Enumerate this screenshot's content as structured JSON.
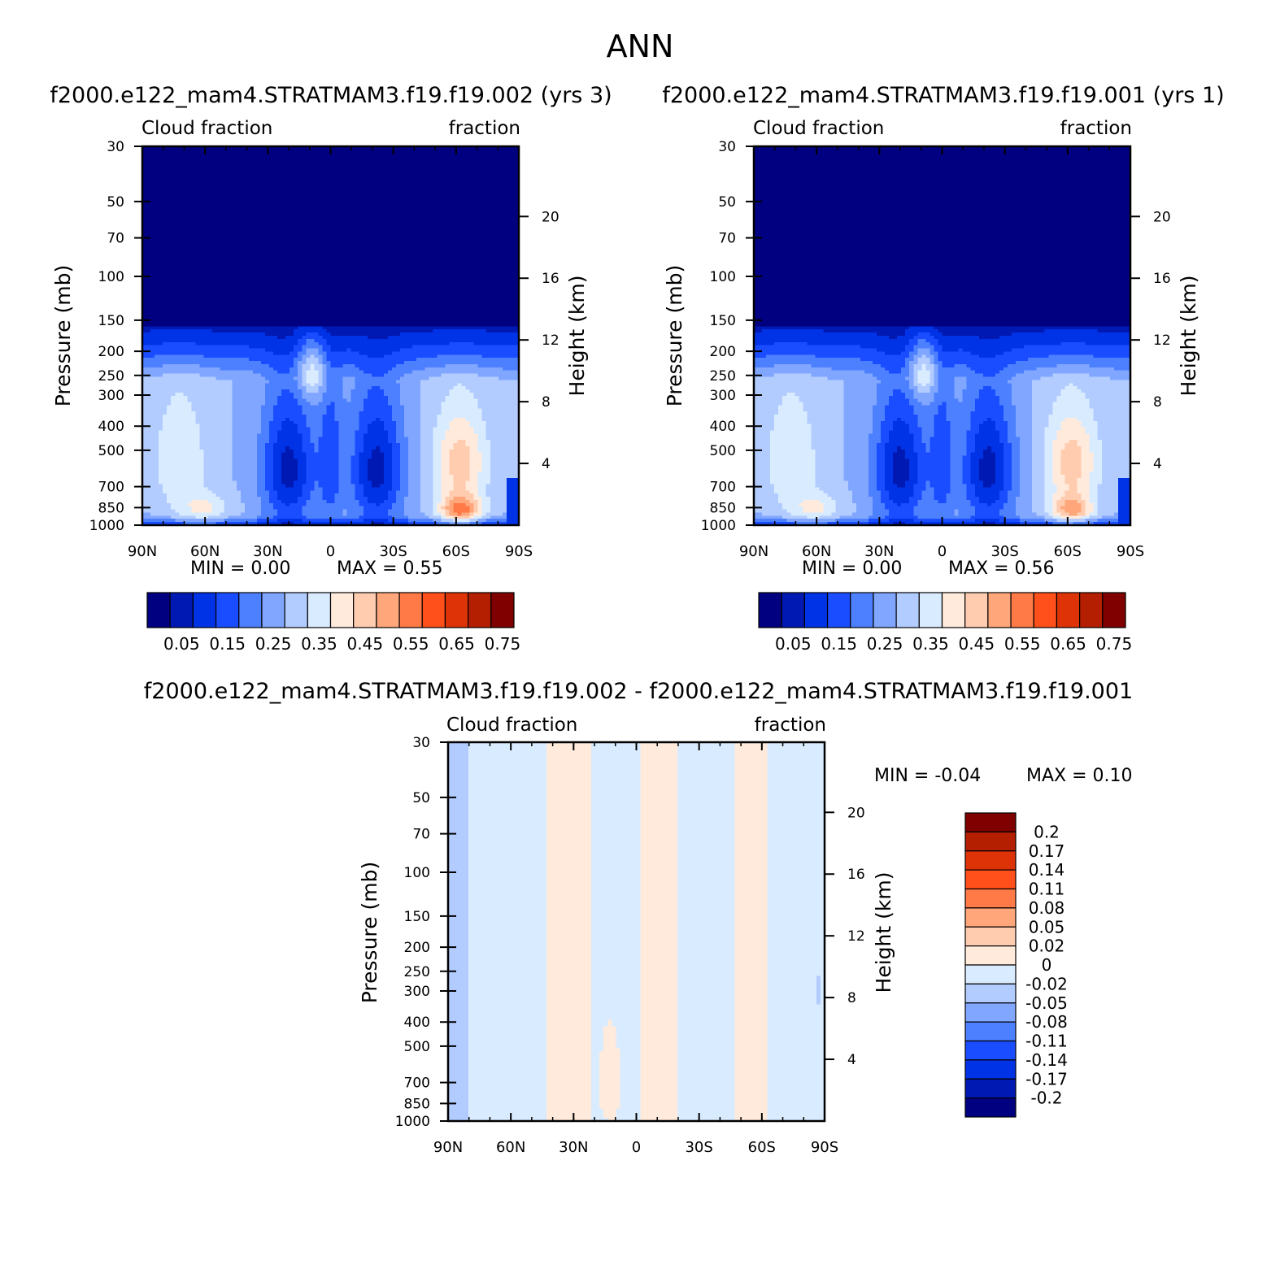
{
  "page": {
    "title": "ANN",
    "diff_title": "f2000.e122_mam4.STRATMAM3.f19.f19.002 - f2000.e122_mam4.STRATMAM3.f19.f19.001"
  },
  "chart_data": [
    {
      "type": "heatmap",
      "title": "f2000.e122_mam4.STRATMAM3.f19.f19.002 (yrs 3)",
      "left_label": "Cloud fraction",
      "right_label": "fraction",
      "xlabel": "",
      "ylabel": "Pressure (mb)",
      "ylabel_right": "Height (km)",
      "x_ticks": [
        "90N",
        "60N",
        "30N",
        "0",
        "30S",
        "60S",
        "90S"
      ],
      "y_ticks": [
        30,
        50,
        70,
        100,
        150,
        200,
        250,
        300,
        400,
        500,
        700,
        850,
        1000
      ],
      "y_ticks_right": [
        20,
        16,
        12,
        8,
        4
      ],
      "min_text": "MIN = 0.00",
      "max_text": "MAX = 0.55",
      "colorbar_labels": [
        "0.05",
        "0.15",
        "0.25",
        "0.35",
        "0.45",
        "0.55",
        "0.65",
        "0.75"
      ],
      "colors": [
        "#000080",
        "#0019b2",
        "#0033e6",
        "#1a4dff",
        "#4d80ff",
        "#80a6ff",
        "#b3ccff",
        "#d9ecff",
        "#ffeadb",
        "#ffccb0",
        "#ffa77a",
        "#ff7a47",
        "#ff4f1a",
        "#de3307",
        "#b31f00",
        "#800000"
      ],
      "scale_min": 0.0,
      "scale_max": 0.8,
      "value_max": 0.55
    },
    {
      "type": "heatmap",
      "title": "f2000.e122_mam4.STRATMAM3.f19.f19.001 (yrs 1)",
      "left_label": "Cloud fraction",
      "right_label": "fraction",
      "xlabel": "",
      "ylabel": "Pressure (mb)",
      "ylabel_right": "Height (km)",
      "x_ticks": [
        "90N",
        "60N",
        "30N",
        "0",
        "30S",
        "60S",
        "90S"
      ],
      "y_ticks": [
        30,
        50,
        70,
        100,
        150,
        200,
        250,
        300,
        400,
        500,
        700,
        850,
        1000
      ],
      "y_ticks_right": [
        20,
        16,
        12,
        8,
        4
      ],
      "min_text": "MIN = 0.00",
      "max_text": "MAX = 0.56",
      "colorbar_labels": [
        "0.05",
        "0.15",
        "0.25",
        "0.35",
        "0.45",
        "0.55",
        "0.65",
        "0.75"
      ],
      "colors": [
        "#000080",
        "#0019b2",
        "#0033e6",
        "#1a4dff",
        "#4d80ff",
        "#80a6ff",
        "#b3ccff",
        "#d9ecff",
        "#ffeadb",
        "#ffccb0",
        "#ffa77a",
        "#ff7a47",
        "#ff4f1a",
        "#de3307",
        "#b31f00",
        "#800000"
      ],
      "scale_min": 0.0,
      "scale_max": 0.8,
      "value_max": 0.56
    },
    {
      "type": "heatmap",
      "title": "",
      "left_label": "Cloud fraction",
      "right_label": "fraction",
      "xlabel": "",
      "ylabel": "Pressure (mb)",
      "ylabel_right": "Height (km)",
      "x_ticks": [
        "90N",
        "60N",
        "30N",
        "0",
        "30S",
        "60S",
        "90S"
      ],
      "y_ticks": [
        30,
        50,
        70,
        100,
        150,
        200,
        250,
        300,
        400,
        500,
        700,
        850,
        1000
      ],
      "y_ticks_right": [
        20,
        16,
        12,
        8,
        4
      ],
      "min_text": "MIN = -0.04",
      "max_text": "MAX = 0.10",
      "colorbar_labels": [
        "0.2",
        "0.17",
        "0.14",
        "0.11",
        "0.08",
        "0.05",
        "0.02",
        "0",
        "-0.02",
        "-0.05",
        "-0.08",
        "-0.11",
        "-0.14",
        "-0.17",
        "-0.2"
      ],
      "colors": [
        "#800000",
        "#b31f00",
        "#de3307",
        "#ff4f1a",
        "#ff7a47",
        "#ffa77a",
        "#ffccb0",
        "#ffeadb",
        "#d9ecff",
        "#b3ccff",
        "#80a6ff",
        "#4d80ff",
        "#1a4dff",
        "#0033e6",
        "#0019b2",
        "#000080"
      ],
      "scale_min": -0.2,
      "scale_max": 0.2,
      "value_min": -0.04,
      "value_max": 0.1
    }
  ]
}
